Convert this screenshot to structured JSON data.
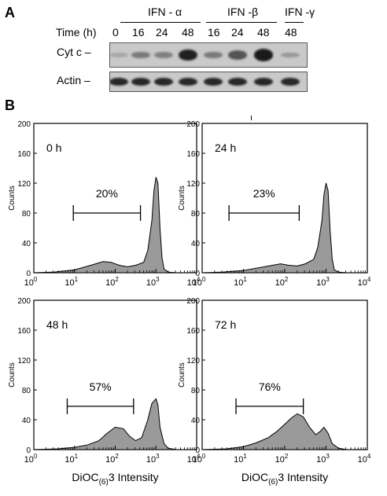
{
  "panel_a": {
    "letter": "A",
    "groups": [
      "IFN - α",
      "IFN -β",
      "IFN -γ"
    ],
    "time_label": "Time (h)",
    "times": [
      "0",
      "16",
      "24",
      "48",
      "16",
      "24",
      "48",
      "48"
    ],
    "rows": [
      "Cyt c –",
      "Actin –"
    ],
    "cytc_intensity": [
      0.05,
      0.35,
      0.3,
      0.95,
      0.35,
      0.6,
      1.0,
      0.15
    ],
    "actin_intensity": [
      0.9,
      0.9,
      0.9,
      0.9,
      0.9,
      0.9,
      0.9,
      0.9
    ]
  },
  "panel_b": {
    "letter": "B",
    "tick_mark": "ı",
    "ylabel": "Counts",
    "xlabel_pre": "DiOC",
    "xlabel_sub": "(6)",
    "xlabel_post": "3 Intensity",
    "yticks": [
      "0",
      "40",
      "80",
      "120",
      "160",
      "200"
    ],
    "xtick_exponents": [
      "0",
      "1",
      "2",
      "3",
      "4"
    ],
    "xtick_base": "10"
  },
  "chart_data": [
    {
      "type": "area",
      "label": "0 h",
      "gate_percent": "20%",
      "gate_log10": [
        0.97,
        2.62
      ],
      "x_log10": [
        0,
        0.5,
        1.0,
        1.4,
        1.7,
        1.9,
        2.1,
        2.3,
        2.5,
        2.7,
        2.8,
        2.9,
        2.95,
        3.0,
        3.05,
        3.1,
        3.15,
        3.2,
        3.3,
        3.5,
        4.0
      ],
      "counts": [
        0,
        1,
        4,
        10,
        15,
        14,
        10,
        8,
        10,
        14,
        30,
        70,
        110,
        128,
        120,
        60,
        20,
        5,
        1,
        0,
        0
      ],
      "ylim": [
        0,
        200
      ],
      "xlim_log10": [
        0,
        4
      ]
    },
    {
      "type": "area",
      "label": "24 h",
      "gate_percent": "23%",
      "gate_log10": [
        0.65,
        2.35
      ],
      "x_log10": [
        0,
        0.5,
        1.0,
        1.4,
        1.7,
        1.9,
        2.1,
        2.3,
        2.5,
        2.7,
        2.8,
        2.9,
        2.95,
        3.0,
        3.05,
        3.1,
        3.15,
        3.2,
        3.3,
        3.5,
        4.0
      ],
      "counts": [
        0,
        1,
        3,
        7,
        10,
        12,
        10,
        9,
        12,
        18,
        34,
        70,
        105,
        120,
        110,
        55,
        18,
        4,
        1,
        0,
        0
      ],
      "ylim": [
        0,
        200
      ],
      "xlim_log10": [
        0,
        4
      ]
    },
    {
      "type": "area",
      "label": "48 h",
      "gate_percent": "57%",
      "gate_log10": [
        0.82,
        2.45
      ],
      "x_log10": [
        0,
        0.6,
        1.0,
        1.3,
        1.6,
        1.8,
        2.0,
        2.2,
        2.35,
        2.5,
        2.65,
        2.8,
        2.9,
        3.0,
        3.05,
        3.1,
        3.2,
        3.3,
        3.5,
        4.0
      ],
      "counts": [
        0,
        1,
        3,
        6,
        12,
        22,
        30,
        28,
        18,
        12,
        16,
        40,
        62,
        68,
        60,
        30,
        8,
        2,
        0,
        0
      ],
      "ylim": [
        0,
        200
      ],
      "xlim_log10": [
        0,
        4
      ]
    },
    {
      "type": "area",
      "label": "72 h",
      "gate_percent": "76%",
      "gate_log10": [
        0.82,
        2.45
      ],
      "x_log10": [
        0,
        0.6,
        1.0,
        1.3,
        1.6,
        1.8,
        2.0,
        2.15,
        2.3,
        2.45,
        2.6,
        2.75,
        2.85,
        2.95,
        3.05,
        3.15,
        3.3,
        3.5,
        4.0
      ],
      "counts": [
        0,
        1,
        4,
        9,
        16,
        24,
        34,
        42,
        48,
        44,
        30,
        20,
        24,
        30,
        22,
        8,
        2,
        0,
        0
      ],
      "ylim": [
        0,
        200
      ],
      "xlim_log10": [
        0,
        4
      ]
    }
  ]
}
